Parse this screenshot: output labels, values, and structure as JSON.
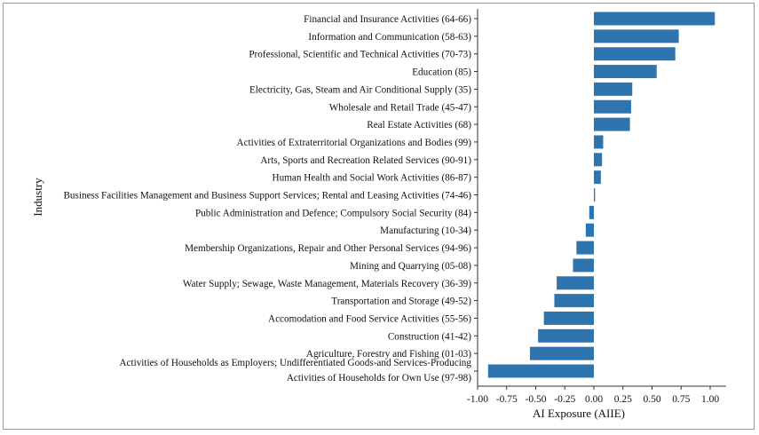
{
  "chart_data": {
    "type": "bar",
    "orientation": "horizontal",
    "bar_color": "#2e75b0",
    "xlabel": "AI Exposure (AIIE)",
    "ylabel": "Industry",
    "xlim": [
      -1.0,
      1.0
    ],
    "xticks": [
      -1.0,
      -0.75,
      -0.5,
      -0.25,
      0.0,
      0.25,
      0.5,
      0.75,
      1.0
    ],
    "xtick_labels": [
      "-1.00",
      "-0.75",
      "-0.50",
      "-0.25",
      "0.00",
      "0.25",
      "0.50",
      "0.75",
      "1.00"
    ],
    "grid": false,
    "categories": [
      [
        "Financial and Insurance Activities (64-66)"
      ],
      [
        "Information and Communication (58-63)"
      ],
      [
        "Professional, Scientific and Technical Activities (70-73)"
      ],
      [
        "Education (85)"
      ],
      [
        "Electricity, Gas, Steam and Air Conditional Supply (35)"
      ],
      [
        "Wholesale and Retail Trade (45-47)"
      ],
      [
        "Real Estate Activities (68)"
      ],
      [
        "Activities of Extraterritorial Organizations and Bodies (99)"
      ],
      [
        "Arts, Sports and Recreation Related Services (90-91)"
      ],
      [
        "Human Health and Social Work Activities (86-87)"
      ],
      [
        "Business Facilities Management and Business Support Services; Rental and Leasing Activities (74-46)"
      ],
      [
        "Public Administration and Defence; Compulsory Social Security (84)"
      ],
      [
        "Manufacturing (10-34)"
      ],
      [
        "Membership Organizations, Repair and Other Personal Services (94-96)"
      ],
      [
        "Mining and Quarrying (05-08)"
      ],
      [
        "Water Supply; Sewage, Waste Management, Materials Recovery (36-39)"
      ],
      [
        "Transportation and Storage (49-52)"
      ],
      [
        "Accomodation and Food Service Activities (55-56)"
      ],
      [
        "Construction (41-42)"
      ],
      [
        "Agriculture, Forestry and Fishing (01-03)"
      ],
      [
        "Activities of Households as Employers; Undifferentiated Goods-and Services-Producing",
        "Activities of Households for Own Use (97-98)"
      ]
    ],
    "values": [
      1.04,
      0.73,
      0.7,
      0.54,
      0.33,
      0.32,
      0.31,
      0.08,
      0.07,
      0.06,
      0.01,
      -0.04,
      -0.07,
      -0.15,
      -0.18,
      -0.32,
      -0.34,
      -0.43,
      -0.48,
      -0.55,
      -0.91
    ]
  }
}
